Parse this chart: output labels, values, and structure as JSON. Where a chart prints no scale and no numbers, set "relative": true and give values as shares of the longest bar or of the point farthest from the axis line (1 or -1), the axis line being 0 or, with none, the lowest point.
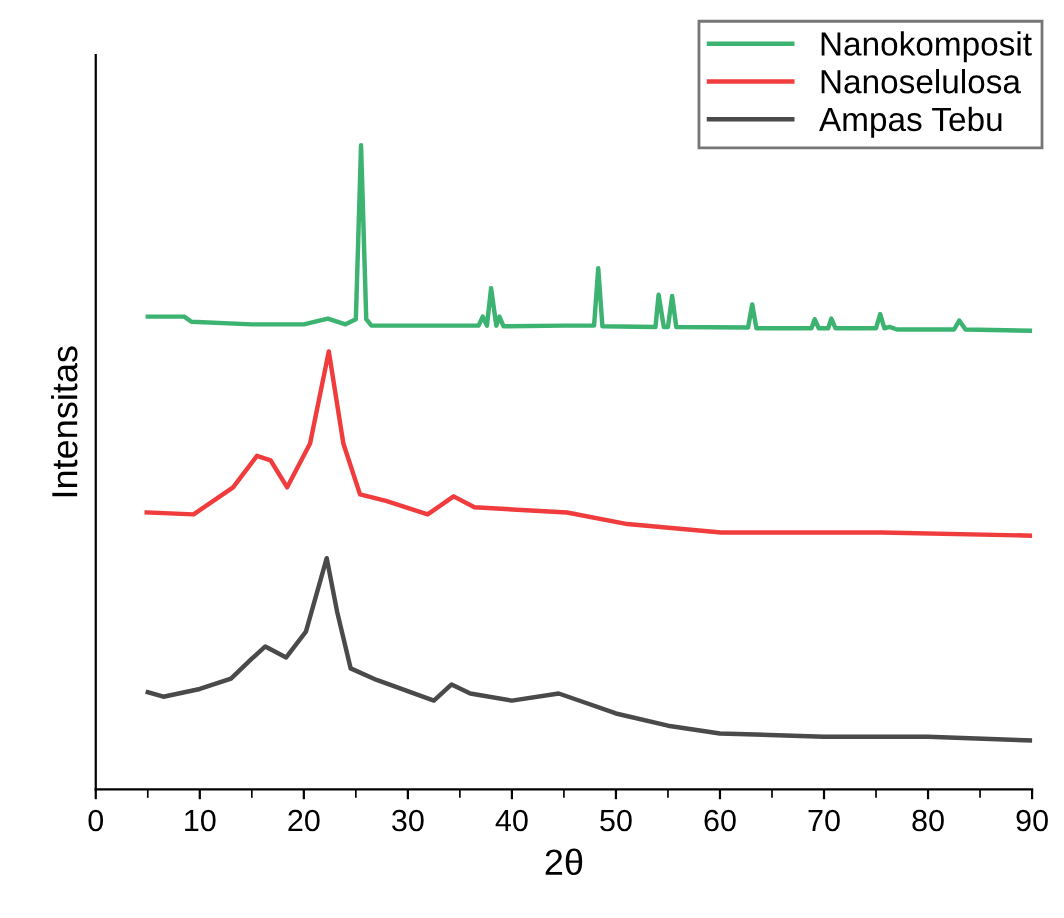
{
  "chart_data": {
    "type": "line",
    "xlabel": "2θ",
    "ylabel": "Intensitas",
    "relative": true,
    "xlim": [
      0,
      90
    ],
    "xticks": [
      0,
      10,
      20,
      30,
      40,
      50,
      60,
      70,
      80,
      90
    ],
    "grid": false,
    "legend": "top right",
    "marker": "none",
    "line_style": "solid",
    "series": [
      {
        "name": "Nanokomposit",
        "color": "#3cb371",
        "x": [
          5,
          8.5,
          9.2,
          15,
          20,
          22.3,
          24,
          25.0,
          25.5,
          26.0,
          26.5,
          30,
          36.8,
          37.2,
          37.6,
          38.0,
          38.5,
          38.8,
          39.2,
          45,
          47.9,
          48.3,
          48.7,
          53.8,
          54.1,
          54.6,
          55.0,
          55.4,
          55.8,
          62.7,
          63.1,
          63.5,
          68.8,
          69.1,
          69.5,
          70.4,
          70.7,
          71.1,
          75.0,
          75.4,
          75.8,
          76.3,
          77,
          82.5,
          83.0,
          83.6,
          90
        ],
        "values": [
          0.734,
          0.734,
          0.726,
          0.722,
          0.722,
          0.731,
          0.722,
          0.73,
          1.0,
          0.73,
          0.72,
          0.72,
          0.72,
          0.734,
          0.72,
          0.778,
          0.72,
          0.734,
          0.719,
          0.72,
          0.72,
          0.809,
          0.719,
          0.718,
          0.768,
          0.718,
          0.718,
          0.766,
          0.718,
          0.717,
          0.753,
          0.716,
          0.716,
          0.73,
          0.716,
          0.716,
          0.731,
          0.716,
          0.716,
          0.738,
          0.716,
          0.718,
          0.714,
          0.714,
          0.728,
          0.714,
          0.712
        ]
      },
      {
        "name": "Nanoselulosa",
        "color": "#f03c3c",
        "x": [
          4.9,
          9.4,
          13.2,
          15.5,
          16.8,
          18.4,
          20.6,
          22.4,
          23.8,
          25.4,
          27.9,
          31.9,
          34.4,
          36.4,
          45.3,
          51.1,
          60.1,
          75.5,
          90
        ],
        "values": [
          0.43,
          0.427,
          0.469,
          0.518,
          0.511,
          0.469,
          0.537,
          0.68,
          0.537,
          0.458,
          0.448,
          0.427,
          0.455,
          0.438,
          0.43,
          0.412,
          0.399,
          0.399,
          0.394
        ]
      },
      {
        "name": "Ampas Tebu",
        "color": "#4a4a4a",
        "x": [
          5,
          6.5,
          10,
          13,
          15,
          16.3,
          18.3,
          20.2,
          22.2,
          23.2,
          24.5,
          27,
          32.5,
          34.2,
          36,
          40,
          44.5,
          47,
          50,
          55,
          60,
          70,
          80,
          90
        ],
        "values": [
          0.151,
          0.144,
          0.156,
          0.172,
          0.203,
          0.222,
          0.205,
          0.245,
          0.359,
          0.276,
          0.188,
          0.17,
          0.138,
          0.163,
          0.149,
          0.138,
          0.149,
          0.135,
          0.118,
          0.099,
          0.087,
          0.082,
          0.082,
          0.076
        ]
      }
    ]
  }
}
